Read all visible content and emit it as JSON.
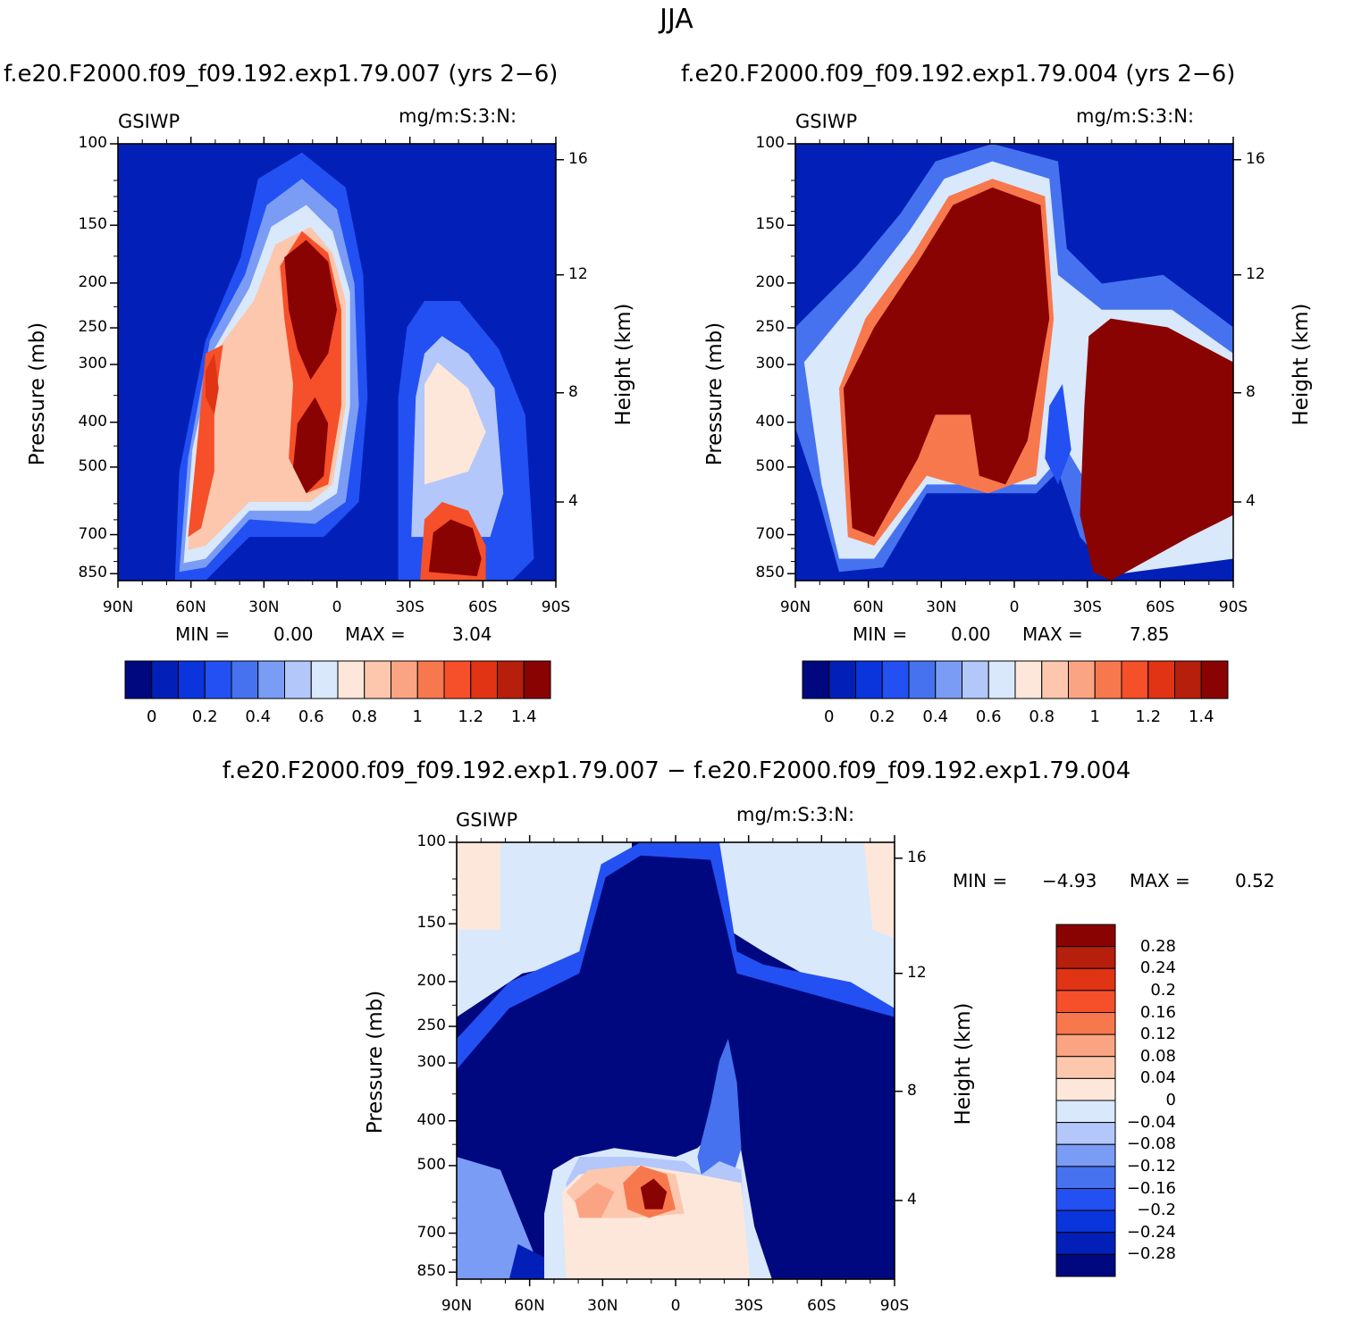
{
  "page_title": "JJA",
  "panels": [
    {
      "title": "f.e20.F2000.f09_f09.192.exp1.79.007 (yrs 2−6)",
      "label": "GSIWP",
      "units": "mg/m:S:3:N:",
      "min_text": "MIN =",
      "min_val": "0.00",
      "max_text": "MAX =",
      "max_val": "3.04"
    },
    {
      "title": "f.e20.F2000.f09_f09.192.exp1.79.004 (yrs 2−6)",
      "label": "GSIWP",
      "units": "mg/m:S:3:N:",
      "min_text": "MIN =",
      "min_val": "0.00",
      "max_text": "MAX =",
      "max_val": "7.85"
    },
    {
      "title": "f.e20.F2000.f09_f09.192.exp1.79.007 − f.e20.F2000.f09_f09.192.exp1.79.004",
      "label": "GSIWP",
      "units": "mg/m:S:3:N:",
      "min_text": "MIN =",
      "min_val": "−4.93",
      "max_text": "MAX =",
      "max_val": "0.52"
    }
  ],
  "axes": {
    "ylabel": "Pressure (mb)",
    "y2label": "Height (km)",
    "pressure_ticks": [
      "100",
      "150",
      "200",
      "250",
      "300",
      "400",
      "500",
      "700",
      "850"
    ],
    "height_ticks": [
      "16",
      "12",
      "8",
      "4"
    ],
    "lat_ticks": [
      "90N",
      "60N",
      "30N",
      "0",
      "30S",
      "60S",
      "90S"
    ]
  },
  "colorbar_main": {
    "labels": [
      "0",
      "0.2",
      "0.4",
      "0.6",
      "0.8",
      "1",
      "1.2",
      "1.4"
    ],
    "colors": [
      "#00087f",
      "#0220b8",
      "#0a34dc",
      "#2350f2",
      "#4672ef",
      "#7b9cf5",
      "#b3c7fa",
      "#d9e8fb",
      "#fde7da",
      "#fcc7ad",
      "#fba484",
      "#f8784d",
      "#f5502a",
      "#e03414",
      "#b51f0b",
      "#8a0303"
    ]
  },
  "colorbar_diff": {
    "labels": [
      "0.28",
      "0.24",
      "0.2",
      "0.16",
      "0.12",
      "0.08",
      "0.04",
      "0",
      "−0.04",
      "−0.08",
      "−0.12",
      "−0.16",
      "−0.2",
      "−0.24",
      "−0.28"
    ],
    "colors": [
      "#8a0303",
      "#b51f0b",
      "#e03414",
      "#f5502a",
      "#f8784d",
      "#fba484",
      "#fcc7ad",
      "#fde7da",
      "#d9e8fb",
      "#b3c7fa",
      "#7b9cf5",
      "#4672ef",
      "#2350f2",
      "#0a34dc",
      "#0220b8",
      "#00087f"
    ]
  },
  "chart_data": [
    {
      "type": "heatmap",
      "title": "f.e20.F2000.f09_f09.192.exp1.79.007 (yrs 2−6)",
      "variable": "GSIWP",
      "units": "mg/m:S:3:N:",
      "xlabel": "",
      "ylabel": "Pressure (mb)",
      "y2label": "Height (km)",
      "xlim": [
        "90N",
        "90S"
      ],
      "ylim": [
        850,
        100
      ],
      "min": 0.0,
      "max": 3.04,
      "levels": [
        0,
        0.1,
        0.2,
        0.3,
        0.4,
        0.5,
        0.6,
        0.7,
        0.8,
        0.9,
        1.0,
        1.1,
        1.2,
        1.3,
        1.4
      ],
      "features": [
        {
          "lat": 13,
          "pressure": 230,
          "value": ">1.4"
        },
        {
          "lat": 13,
          "pressure": 480,
          "value": ">1.4"
        },
        {
          "lat": 50,
          "pressure": 800,
          "value": ">1.4"
        },
        {
          "lat": 58,
          "pressure": 340,
          "value": 1.2
        },
        {
          "lat": 63,
          "pressure": 680,
          "value": 1.2
        },
        {
          "lat": -40,
          "pressure": 400,
          "value": 0.8
        }
      ]
    },
    {
      "type": "heatmap",
      "title": "f.e20.F2000.f09_f09.192.exp1.79.004 (yrs 2−6)",
      "variable": "GSIWP",
      "units": "mg/m:S:3:N:",
      "xlabel": "",
      "ylabel": "Pressure (mb)",
      "y2label": "Height (km)",
      "xlim": [
        "90N",
        "90S"
      ],
      "ylim": [
        850,
        100
      ],
      "min": 0.0,
      "max": 7.85,
      "levels": [
        0,
        0.1,
        0.2,
        0.3,
        0.4,
        0.5,
        0.6,
        0.7,
        0.8,
        0.9,
        1.0,
        1.1,
        1.2,
        1.3,
        1.4
      ],
      "features": [
        {
          "lat": 15,
          "pressure": 250,
          "value": ">1.4"
        },
        {
          "lat": 55,
          "pressure": 500,
          "value": ">1.4"
        },
        {
          "lat": -60,
          "pressure": 500,
          "value": ">1.4"
        }
      ]
    },
    {
      "type": "heatmap",
      "title": "f.e20.F2000.f09_f09.192.exp1.79.007 − f.e20.F2000.f09_f09.192.exp1.79.004",
      "variable": "GSIWP",
      "units": "mg/m:S:3:N:",
      "xlabel": "",
      "ylabel": "Pressure (mb)",
      "y2label": "Height (km)",
      "xlim": [
        "90N",
        "90S"
      ],
      "ylim": [
        850,
        100
      ],
      "min": -4.93,
      "max": 0.52,
      "levels": [
        -0.28,
        -0.24,
        -0.2,
        -0.16,
        -0.12,
        -0.08,
        -0.04,
        0,
        0.04,
        0.08,
        0.12,
        0.16,
        0.2,
        0.24,
        0.28
      ],
      "features": [
        {
          "lat": 10,
          "pressure": 250,
          "value": "<-0.28"
        },
        {
          "lat": 12,
          "pressure": 620,
          "value": ">0.28"
        },
        {
          "lat": 30,
          "pressure": 650,
          "value": 0.12
        }
      ]
    }
  ]
}
